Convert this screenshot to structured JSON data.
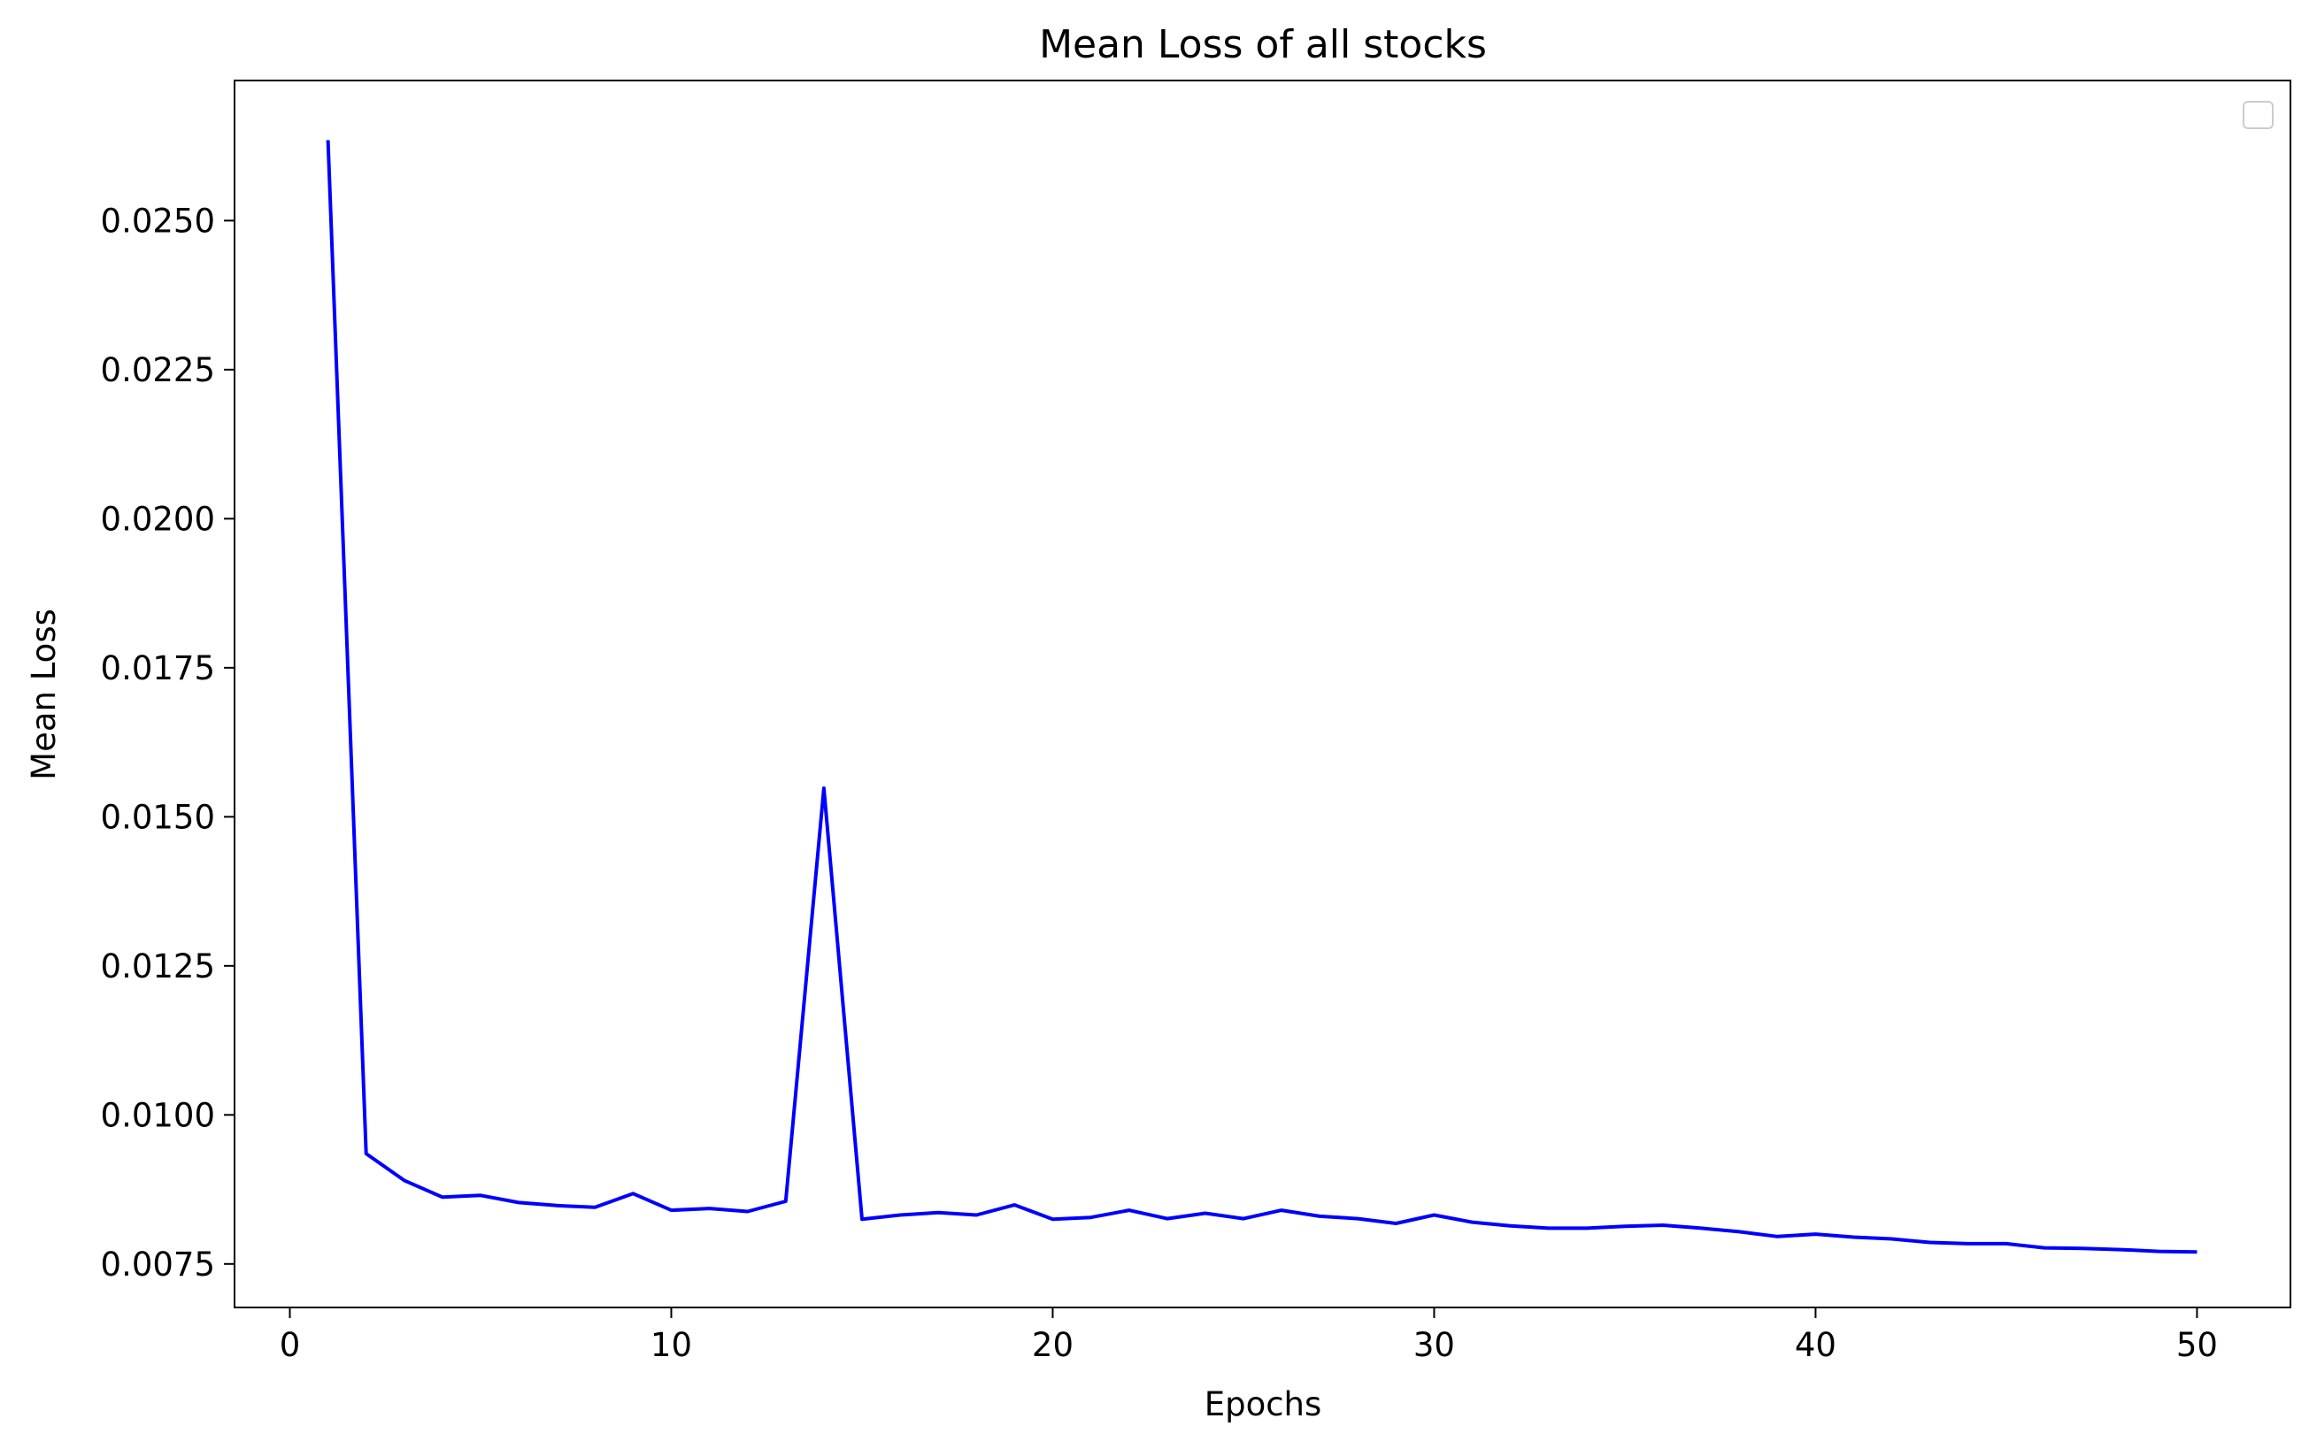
{
  "chart_data": {
    "type": "line",
    "title": "Mean Loss of all stocks",
    "xlabel": "Epochs",
    "ylabel": "Mean Loss",
    "xlim": [
      -1.45,
      52.45
    ],
    "ylim": [
      0.00677,
      0.02735
    ],
    "xticks": [
      0,
      10,
      20,
      30,
      40,
      50
    ],
    "xtick_labels": [
      "0",
      "10",
      "20",
      "30",
      "40",
      "50"
    ],
    "yticks": [
      0.0075,
      0.01,
      0.0125,
      0.015,
      0.0175,
      0.02,
      0.0225,
      0.025
    ],
    "ytick_labels": [
      "0.0075",
      "0.0100",
      "0.0125",
      "0.0150",
      "0.0175",
      "0.0200",
      "0.0225",
      "0.0250"
    ],
    "grid": false,
    "legend": {
      "placement": "top-right",
      "entries": []
    },
    "series": [
      {
        "color": "#0000ff",
        "x": [
          1,
          2,
          3,
          4,
          5,
          6,
          7,
          8,
          9,
          10,
          11,
          12,
          13,
          14,
          15,
          16,
          17,
          18,
          19,
          20,
          21,
          22,
          23,
          24,
          25,
          26,
          27,
          28,
          29,
          30,
          31,
          32,
          33,
          34,
          35,
          36,
          37,
          38,
          39,
          40,
          41,
          42,
          43,
          44,
          45,
          46,
          47,
          48,
          49,
          50
        ],
        "y": [
          0.02635,
          0.00935,
          0.0089,
          0.00862,
          0.00865,
          0.00853,
          0.00848,
          0.00845,
          0.00868,
          0.0084,
          0.00843,
          0.00838,
          0.00855,
          0.01548,
          0.00825,
          0.00832,
          0.00836,
          0.00832,
          0.00849,
          0.00825,
          0.00828,
          0.0084,
          0.00826,
          0.00835,
          0.00826,
          0.0084,
          0.0083,
          0.00826,
          0.00818,
          0.00832,
          0.0082,
          0.00814,
          0.0081,
          0.0081,
          0.00813,
          0.00815,
          0.0081,
          0.00804,
          0.00796,
          0.008,
          0.00795,
          0.00792,
          0.00786,
          0.00784,
          0.00784,
          0.00777,
          0.00776,
          0.00774,
          0.00771,
          0.0077
        ]
      }
    ]
  }
}
